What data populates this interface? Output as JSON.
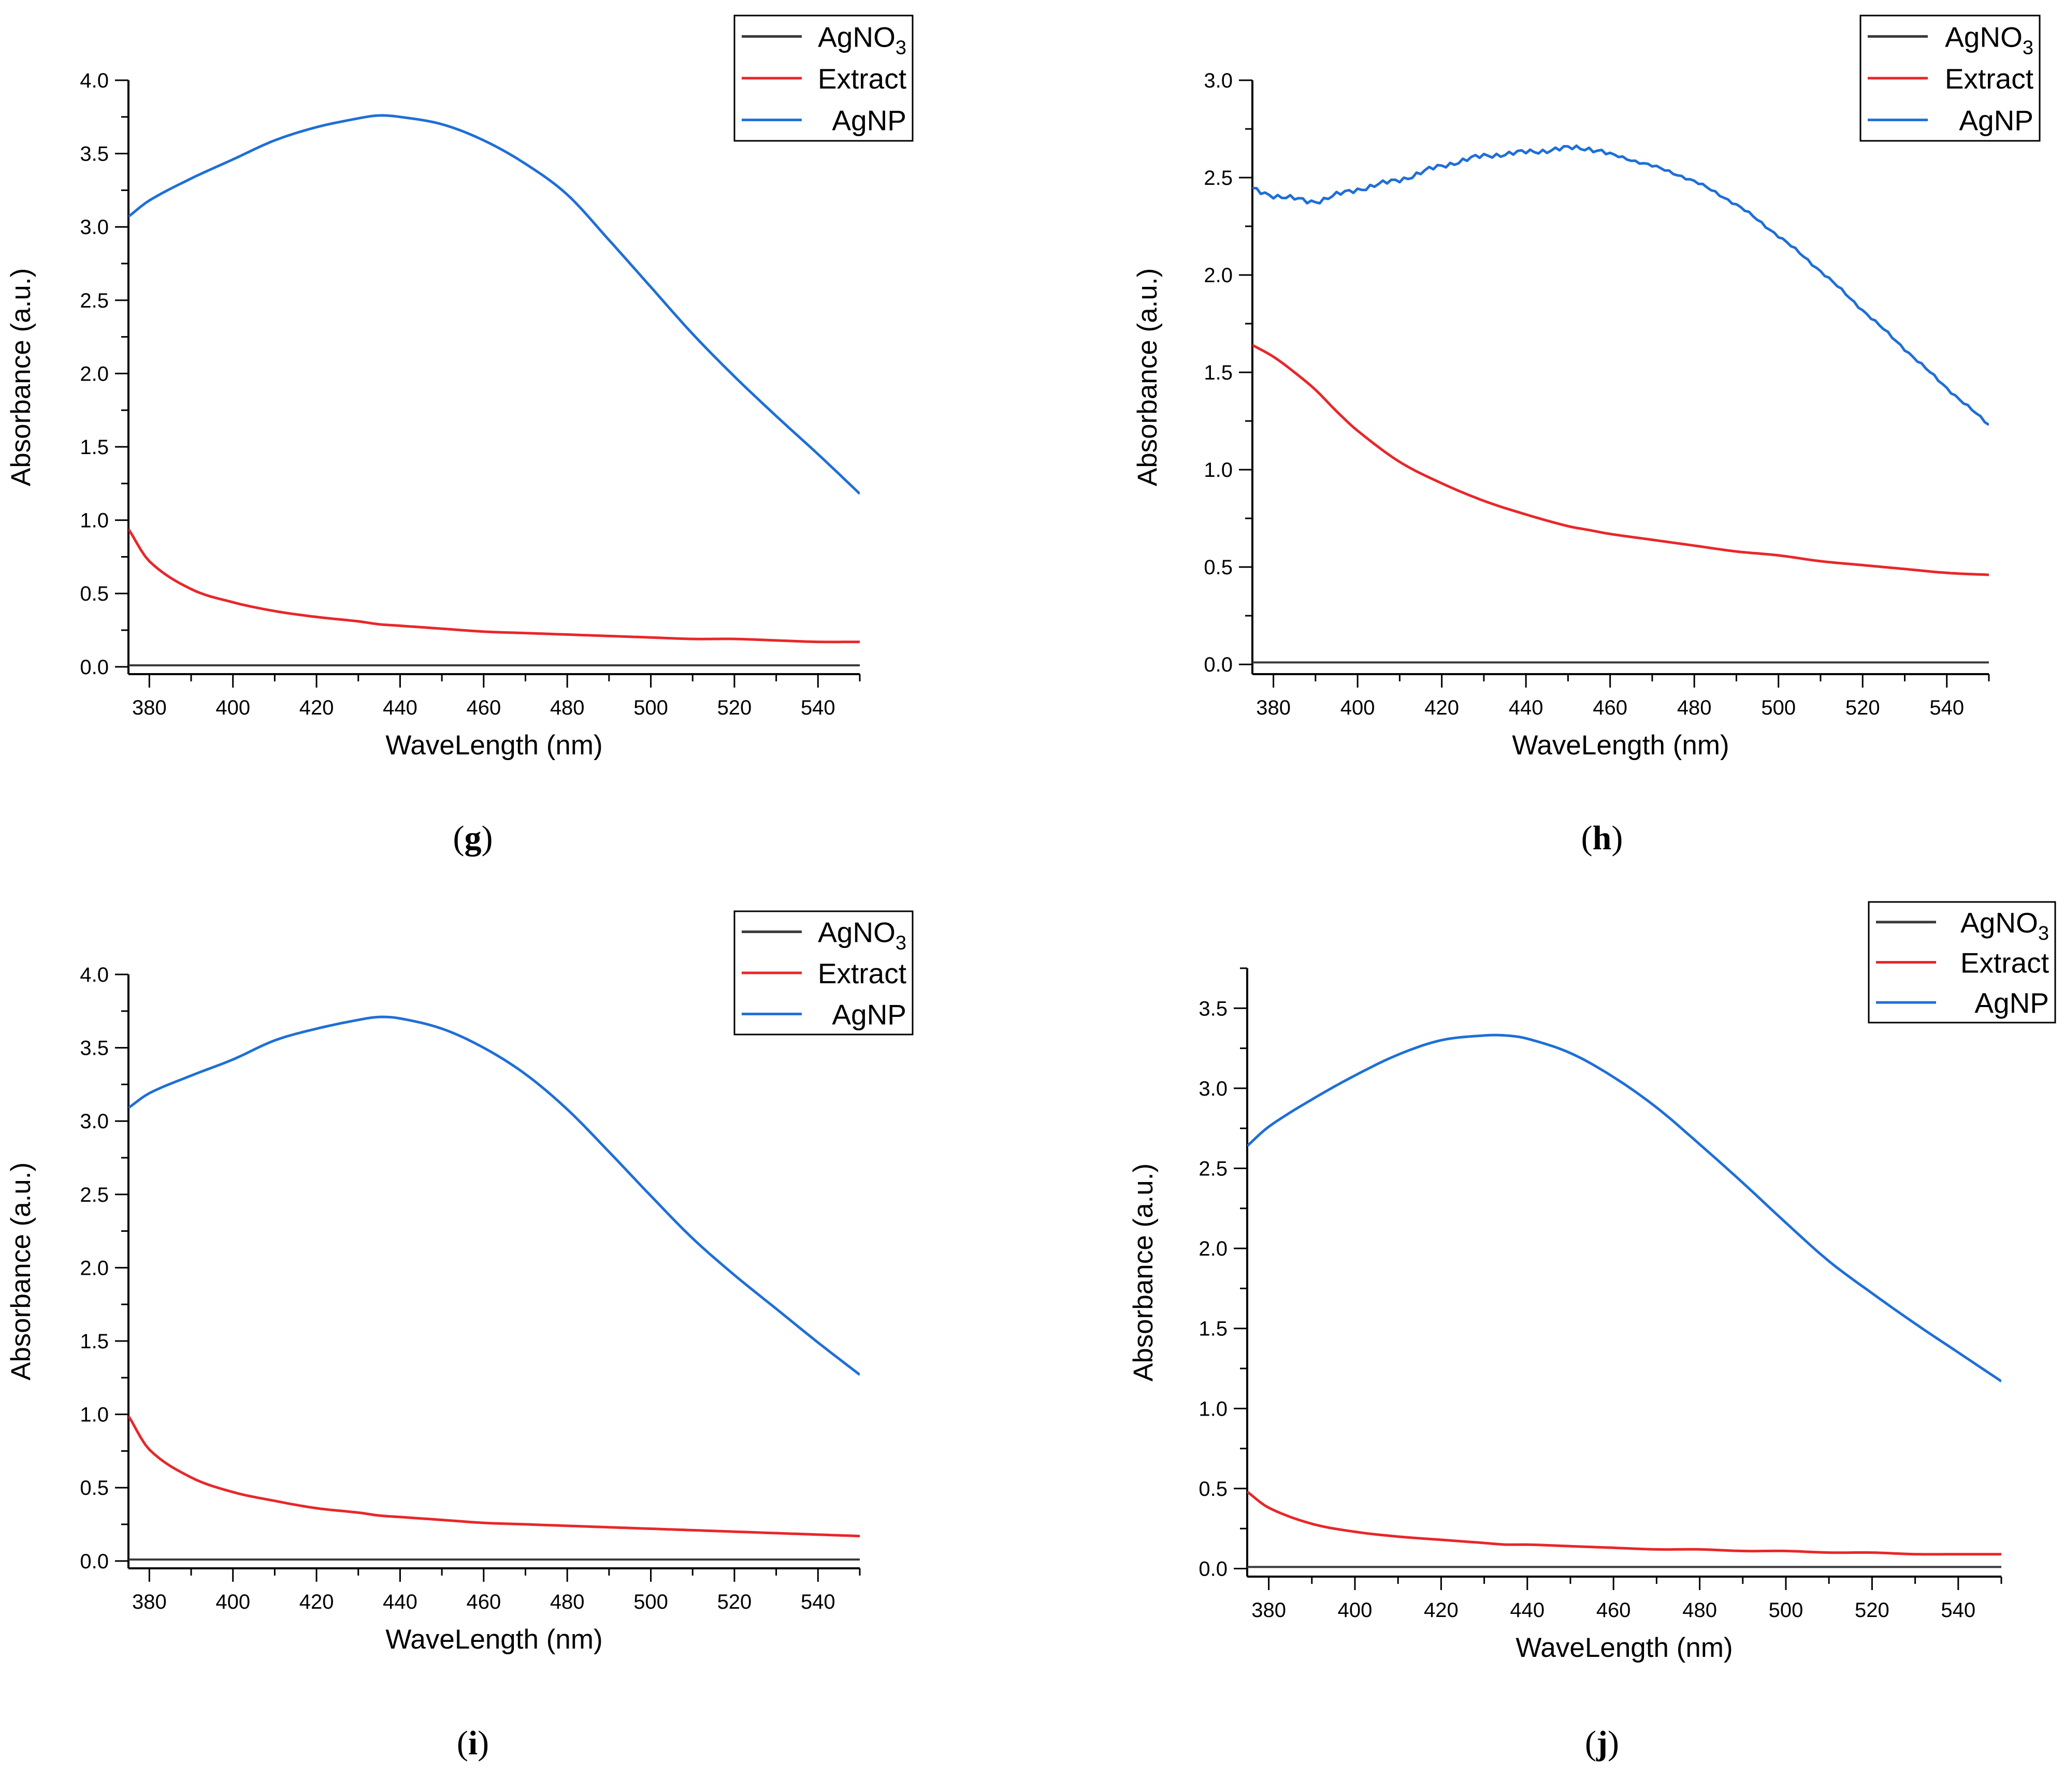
{
  "figure_title": "",
  "chart_data": [
    {
      "panel": "g",
      "panel_label": "(g)",
      "panel_label_open": "(",
      "panel_label_letter": "g",
      "panel_label_close": ")",
      "type": "line",
      "title": "",
      "xlabel": "WaveLength (nm)",
      "ylabel": "Absorbance (a.u.)",
      "xlim": [
        375,
        550
      ],
      "ylim": [
        -0.05,
        4.0
      ],
      "xticks": [
        380,
        400,
        420,
        440,
        460,
        480,
        500,
        520,
        540
      ],
      "xticklabels": [
        "380",
        "400",
        "420",
        "440",
        "460",
        "480",
        "500",
        "520",
        "540"
      ],
      "yticks": [
        0.0,
        0.5,
        1.0,
        1.5,
        2.0,
        2.5,
        3.0,
        3.5,
        4.0
      ],
      "yticklabels": [
        "0.0",
        "0.5",
        "1.0",
        "1.5",
        "2.0",
        "2.5",
        "3.0",
        "3.5",
        "4.0"
      ],
      "legend_position": "top-right, outside above plot",
      "x": [
        375,
        380,
        390,
        400,
        410,
        420,
        430,
        435,
        440,
        450,
        460,
        470,
        480,
        490,
        500,
        510,
        520,
        530,
        540,
        550
      ],
      "series": [
        {
          "name": "AgNO3",
          "legend_main": "AgNO",
          "legend_sub": "3",
          "color": "#3a3a3a",
          "noise": false,
          "values": [
            0.01,
            0.01,
            0.01,
            0.01,
            0.01,
            0.01,
            0.01,
            0.01,
            0.01,
            0.01,
            0.01,
            0.01,
            0.01,
            0.01,
            0.01,
            0.01,
            0.01,
            0.01,
            0.01,
            0.01
          ]
        },
        {
          "name": "Extract",
          "legend_main": "Extract",
          "legend_sub": "",
          "color": "#e8272a",
          "noise": false,
          "values": [
            0.94,
            0.72,
            0.53,
            0.44,
            0.38,
            0.34,
            0.31,
            0.29,
            0.28,
            0.26,
            0.24,
            0.23,
            0.22,
            0.21,
            0.2,
            0.19,
            0.19,
            0.18,
            0.17,
            0.17
          ]
        },
        {
          "name": "AgNP",
          "legend_main": "AgNP",
          "legend_sub": "",
          "color": "#1f6fd6",
          "noise": false,
          "values": [
            3.07,
            3.18,
            3.33,
            3.46,
            3.59,
            3.68,
            3.74,
            3.76,
            3.75,
            3.7,
            3.59,
            3.43,
            3.22,
            2.91,
            2.59,
            2.27,
            1.98,
            1.71,
            1.45,
            1.18
          ]
        }
      ]
    },
    {
      "panel": "h",
      "panel_label": "(h)",
      "panel_label_open": "(",
      "panel_label_letter": "h",
      "panel_label_close": ")",
      "type": "line",
      "title": "",
      "xlabel": "WaveLength (nm)",
      "ylabel": "Absorbance (a.u.)",
      "xlim": [
        375,
        550
      ],
      "ylim": [
        -0.05,
        3.0
      ],
      "xticks": [
        380,
        400,
        420,
        440,
        460,
        480,
        500,
        520,
        540
      ],
      "xticklabels": [
        "380",
        "400",
        "420",
        "440",
        "460",
        "480",
        "500",
        "520",
        "540"
      ],
      "yticks": [
        0.0,
        0.5,
        1.0,
        1.5,
        2.0,
        2.5,
        3.0
      ],
      "yticklabels": [
        "0.0",
        "0.5",
        "1.0",
        "1.5",
        "2.0",
        "2.5",
        "3.0"
      ],
      "legend_position": "top-right, outside above plot",
      "x": [
        375,
        380,
        385,
        390,
        395,
        400,
        410,
        420,
        430,
        440,
        450,
        455,
        460,
        470,
        480,
        490,
        500,
        510,
        520,
        530,
        540,
        550
      ],
      "series": [
        {
          "name": "AgNO3",
          "legend_main": "AgNO",
          "legend_sub": "3",
          "color": "#3a3a3a",
          "noise": false,
          "values": [
            0.01,
            0.01,
            0.01,
            0.01,
            0.01,
            0.01,
            0.01,
            0.01,
            0.01,
            0.01,
            0.01,
            0.01,
            0.01,
            0.01,
            0.01,
            0.01,
            0.01,
            0.01,
            0.01,
            0.01,
            0.01,
            0.01
          ]
        },
        {
          "name": "Extract",
          "legend_main": "Extract",
          "legend_sub": "",
          "color": "#e8272a",
          "noise": false,
          "values": [
            1.64,
            1.58,
            1.5,
            1.41,
            1.3,
            1.2,
            1.04,
            0.93,
            0.84,
            0.77,
            0.71,
            0.69,
            0.67,
            0.64,
            0.61,
            0.58,
            0.56,
            0.53,
            0.51,
            0.49,
            0.47,
            0.46
          ]
        },
        {
          "name": "AgNP",
          "legend_main": "AgNP",
          "legend_sub": "",
          "color": "#1f6fd6",
          "noise": true,
          "values": [
            2.44,
            2.41,
            2.39,
            2.38,
            2.41,
            2.44,
            2.49,
            2.56,
            2.61,
            2.63,
            2.65,
            2.65,
            2.62,
            2.56,
            2.48,
            2.36,
            2.2,
            2.02,
            1.82,
            1.62,
            1.42,
            1.23
          ]
        }
      ]
    },
    {
      "panel": "i",
      "panel_label": "(i)",
      "panel_label_open": "(",
      "panel_label_letter": "i",
      "panel_label_close": ")",
      "type": "line",
      "title": "",
      "xlabel": "WaveLength (nm)",
      "ylabel": "Absorbance (a.u.)",
      "xlim": [
        375,
        550
      ],
      "ylim": [
        -0.05,
        4.0
      ],
      "xticks": [
        380,
        400,
        420,
        440,
        460,
        480,
        500,
        520,
        540
      ],
      "xticklabels": [
        "380",
        "400",
        "420",
        "440",
        "460",
        "480",
        "500",
        "520",
        "540"
      ],
      "yticks": [
        0.0,
        0.5,
        1.0,
        1.5,
        2.0,
        2.5,
        3.0,
        3.5,
        4.0
      ],
      "yticklabels": [
        "0.0",
        "0.5",
        "1.0",
        "1.5",
        "2.0",
        "2.5",
        "3.0",
        "3.5",
        "4.0"
      ],
      "legend_position": "top-right, outside above plot",
      "x": [
        375,
        380,
        390,
        400,
        410,
        420,
        430,
        435,
        440,
        450,
        460,
        470,
        480,
        490,
        500,
        510,
        520,
        530,
        540,
        550
      ],
      "series": [
        {
          "name": "AgNO3",
          "legend_main": "AgNO",
          "legend_sub": "3",
          "color": "#3a3a3a",
          "noise": false,
          "values": [
            0.01,
            0.01,
            0.01,
            0.01,
            0.01,
            0.01,
            0.01,
            0.01,
            0.01,
            0.01,
            0.01,
            0.01,
            0.01,
            0.01,
            0.01,
            0.01,
            0.01,
            0.01,
            0.01,
            0.01
          ]
        },
        {
          "name": "Extract",
          "legend_main": "Extract",
          "legend_sub": "",
          "color": "#e8272a",
          "noise": false,
          "values": [
            0.99,
            0.76,
            0.57,
            0.47,
            0.41,
            0.36,
            0.33,
            0.31,
            0.3,
            0.28,
            0.26,
            0.25,
            0.24,
            0.23,
            0.22,
            0.21,
            0.2,
            0.19,
            0.18,
            0.17
          ]
        },
        {
          "name": "AgNP",
          "legend_main": "AgNP",
          "legend_sub": "",
          "color": "#1f6fd6",
          "noise": false,
          "values": [
            3.09,
            3.19,
            3.31,
            3.42,
            3.55,
            3.63,
            3.69,
            3.71,
            3.7,
            3.63,
            3.5,
            3.32,
            3.08,
            2.79,
            2.49,
            2.2,
            1.95,
            1.72,
            1.49,
            1.27
          ]
        }
      ]
    },
    {
      "panel": "j",
      "panel_label": "(j)",
      "panel_label_open": "(",
      "panel_label_letter": "j",
      "panel_label_close": ")",
      "type": "line",
      "title": "",
      "xlabel": "WaveLength (nm)",
      "ylabel": "Absorbance (a.u.)",
      "xlim": [
        375,
        550
      ],
      "ylim": [
        -0.05,
        3.75
      ],
      "xticks": [
        380,
        400,
        420,
        440,
        460,
        480,
        500,
        520,
        540
      ],
      "xticklabels": [
        "380",
        "400",
        "420",
        "440",
        "460",
        "480",
        "500",
        "520",
        "540"
      ],
      "yticks": [
        0.0,
        0.5,
        1.0,
        1.5,
        2.0,
        2.5,
        3.0,
        3.5
      ],
      "yticklabels": [
        "0.0",
        "0.5",
        "1.0",
        "1.5",
        "2.0",
        "2.5",
        "3.0",
        "3.5"
      ],
      "legend_position": "top-right, outside above plot",
      "x": [
        375,
        380,
        390,
        400,
        410,
        420,
        430,
        435,
        440,
        450,
        460,
        470,
        480,
        490,
        500,
        510,
        520,
        530,
        540,
        550
      ],
      "series": [
        {
          "name": "AgNO3",
          "legend_main": "AgNO",
          "legend_sub": "3",
          "color": "#3a3a3a",
          "noise": false,
          "values": [
            0.01,
            0.01,
            0.01,
            0.01,
            0.01,
            0.01,
            0.01,
            0.01,
            0.01,
            0.01,
            0.01,
            0.01,
            0.01,
            0.01,
            0.01,
            0.01,
            0.01,
            0.01,
            0.01,
            0.01
          ]
        },
        {
          "name": "Extract",
          "legend_main": "Extract",
          "legend_sub": "",
          "color": "#e8272a",
          "noise": false,
          "values": [
            0.48,
            0.38,
            0.28,
            0.23,
            0.2,
            0.18,
            0.16,
            0.15,
            0.15,
            0.14,
            0.13,
            0.12,
            0.12,
            0.11,
            0.11,
            0.1,
            0.1,
            0.09,
            0.09,
            0.09
          ]
        },
        {
          "name": "AgNP",
          "legend_main": "AgNP",
          "legend_sub": "",
          "color": "#1f6fd6",
          "noise": false,
          "values": [
            2.64,
            2.76,
            2.93,
            3.08,
            3.21,
            3.3,
            3.33,
            3.33,
            3.31,
            3.22,
            3.07,
            2.88,
            2.65,
            2.41,
            2.16,
            1.92,
            1.72,
            1.53,
            1.35,
            1.17
          ]
        }
      ]
    }
  ]
}
